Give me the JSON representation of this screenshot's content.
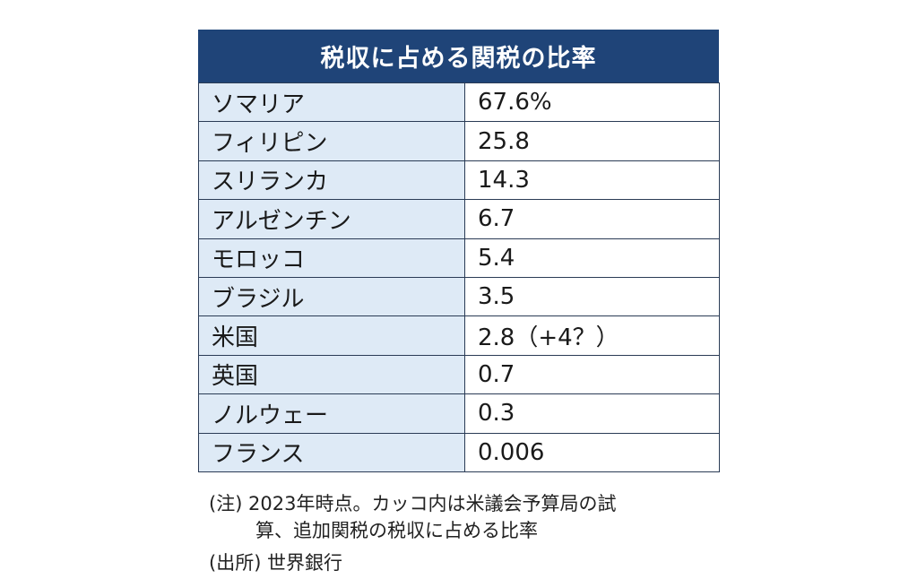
{
  "title": "税収に占める関税の比率",
  "rows": [
    {
      "country": "ソマリア",
      "value": "67.6%"
    },
    {
      "country": "フィリピン",
      "value": "25.8"
    },
    {
      "country": "スリランカ",
      "value": "14.3"
    },
    {
      "country": "アルゼンチン",
      "value": "6.7"
    },
    {
      "country": "モロッコ",
      "value": "5.4"
    },
    {
      "country": "ブラジル",
      "value": "3.5"
    },
    {
      "country": "米国",
      "value": "2.8（+4？）"
    },
    {
      "country": "英国",
      "value": "0.7"
    },
    {
      "country": "ノルウェー",
      "value": "0.3"
    },
    {
      "country": "フランス",
      "value": "0.006"
    }
  ],
  "notes": {
    "note_line1": "(注) 2023年時点。カッコ内は米議会予算局の試",
    "note_line2": "算、追加関税の税収に占める比率",
    "source": "(出所) 世界銀行"
  },
  "colors": {
    "title_bg": "#1f4478",
    "country_cell_bg": "#deeaf6",
    "border": "#2a3b55"
  }
}
